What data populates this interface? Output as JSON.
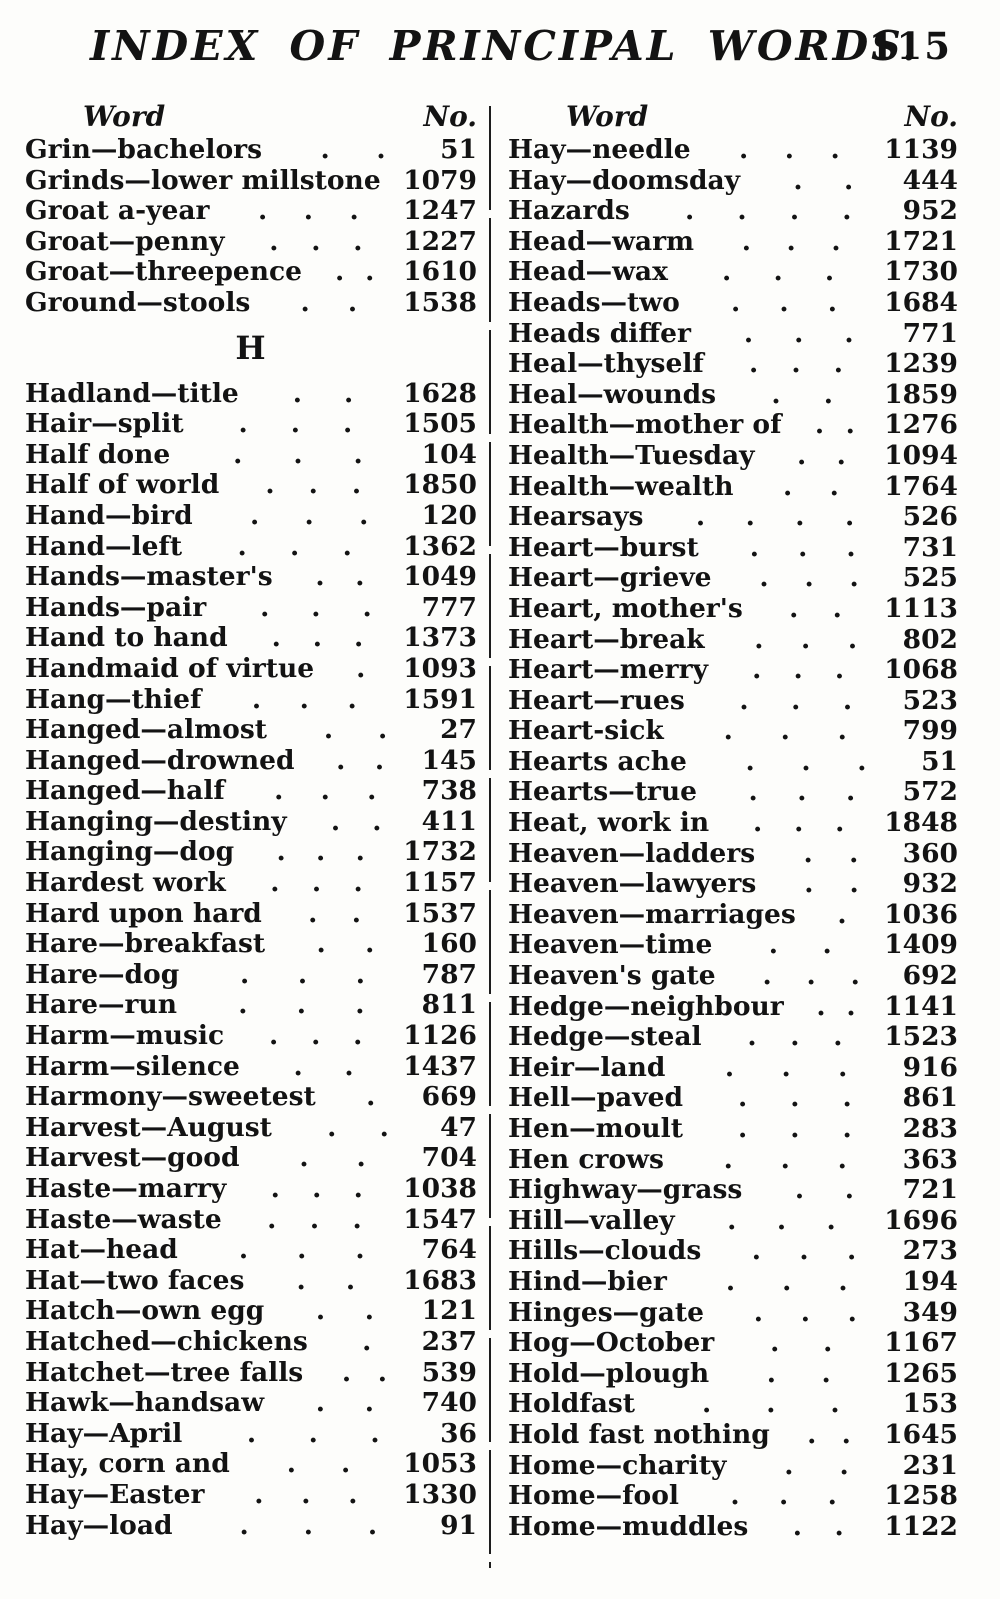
{
  "page": {
    "title": "INDEX OF PRINCIPAL WORDS.",
    "number": "115"
  },
  "table": {
    "word_header": "Word",
    "no_header": "No.",
    "columns": [
      {
        "entries": [
          {
            "word": "Grin—bachelors",
            "no": "51",
            "dots": 2
          },
          {
            "word": "Grinds—lower millstone",
            "no": "1079",
            "dots": 0
          },
          {
            "word": "Groat a-year",
            "no": "1247",
            "dots": 3
          },
          {
            "word": "Groat—penny",
            "no": "1227",
            "dots": 3
          },
          {
            "word": "Groat—threepence",
            "no": "1610",
            "dots": 2
          },
          {
            "word": "Ground—stools",
            "no": "1538",
            "dots": 2
          },
          {
            "heading": "H"
          },
          {
            "word": "Hadland—title",
            "no": "1628",
            "dots": 2
          },
          {
            "word": "Hair—split",
            "no": "1505",
            "dots": 3
          },
          {
            "word": "Half done",
            "no": "104",
            "dots": 3
          },
          {
            "word": "Half of world",
            "no": "1850",
            "dots": 3
          },
          {
            "word": "Hand—bird",
            "no": "120",
            "dots": 3
          },
          {
            "word": "Hand—left",
            "no": "1362",
            "dots": 3
          },
          {
            "word": "Hands—master's",
            "no": "1049",
            "dots": 2
          },
          {
            "word": "Hands—pair",
            "no": "777",
            "dots": 3
          },
          {
            "word": "Hand to hand",
            "no": "1373",
            "dots": 3
          },
          {
            "word": "Handmaid of virtue",
            "no": "1093",
            "dots": 1
          },
          {
            "word": "Hang—thief",
            "no": "1591",
            "dots": 3
          },
          {
            "word": "Hanged—almost",
            "no": "27",
            "dots": 2
          },
          {
            "word": "Hanged—drowned",
            "no": "145",
            "dots": 2
          },
          {
            "word": "Hanged—half",
            "no": "738",
            "dots": 3
          },
          {
            "word": "Hanging—destiny",
            "no": "411",
            "dots": 2
          },
          {
            "word": "Hanging—dog",
            "no": "1732",
            "dots": 3
          },
          {
            "word": "Hardest work",
            "no": "1157",
            "dots": 3
          },
          {
            "word": "Hard upon hard",
            "no": "1537",
            "dots": 2
          },
          {
            "word": "Hare—breakfast",
            "no": "160",
            "dots": 2
          },
          {
            "word": "Hare—dog",
            "no": "787",
            "dots": 3
          },
          {
            "word": "Hare—run",
            "no": "811",
            "dots": 3
          },
          {
            "word": "Harm—music",
            "no": "1126",
            "dots": 3
          },
          {
            "word": "Harm—silence",
            "no": "1437",
            "dots": 2
          },
          {
            "word": "Harmony—sweetest",
            "no": "669",
            "dots": 1
          },
          {
            "word": "Harvest—August",
            "no": "47",
            "dots": 2
          },
          {
            "word": "Harvest—good",
            "no": "704",
            "dots": 2
          },
          {
            "word": "Haste—marry",
            "no": "1038",
            "dots": 3
          },
          {
            "word": "Haste—waste",
            "no": "1547",
            "dots": 3
          },
          {
            "word": "Hat—head",
            "no": "764",
            "dots": 3
          },
          {
            "word": "Hat—two faces",
            "no": "1683",
            "dots": 2
          },
          {
            "word": "Hatch—own egg",
            "no": "121",
            "dots": 2
          },
          {
            "word": "Hatched—chickens",
            "no": "237",
            "dots": 1
          },
          {
            "word": "Hatchet—tree falls",
            "no": "539",
            "dots": 2
          },
          {
            "word": "Hawk—handsaw",
            "no": "740",
            "dots": 2
          },
          {
            "word": "Hay—April",
            "no": "36",
            "dots": 3
          },
          {
            "word": "Hay, corn and",
            "no": "1053",
            "dots": 2
          },
          {
            "word": "Hay—Easter",
            "no": "1330",
            "dots": 3
          },
          {
            "word": "Hay—load",
            "no": "91",
            "dots": 3
          }
        ]
      },
      {
        "entries": [
          {
            "word": "Hay—needle",
            "no": "1139",
            "dots": 3
          },
          {
            "word": "Hay—doomsday",
            "no": "444",
            "dots": 2
          },
          {
            "word": "Hazards",
            "no": "952",
            "dots": 4
          },
          {
            "word": "Head—warm",
            "no": "1721",
            "dots": 3
          },
          {
            "word": "Head—wax",
            "no": "1730",
            "dots": 3
          },
          {
            "word": "Heads—two",
            "no": "1684",
            "dots": 3
          },
          {
            "word": "Heads differ",
            "no": "771",
            "dots": 3
          },
          {
            "word": "Heal—thyself",
            "no": "1239",
            "dots": 3
          },
          {
            "word": "Heal—wounds",
            "no": "1859",
            "dots": 2
          },
          {
            "word": "Health—mother of",
            "no": "1276",
            "dots": 2
          },
          {
            "word": "Health—Tuesday",
            "no": "1094",
            "dots": 2
          },
          {
            "word": "Health—wealth",
            "no": "1764",
            "dots": 2
          },
          {
            "word": "Hearsays",
            "no": "526",
            "dots": 4
          },
          {
            "word": "Heart—burst",
            "no": "731",
            "dots": 3
          },
          {
            "word": "Heart—grieve",
            "no": "525",
            "dots": 3
          },
          {
            "word": "Heart, mother's",
            "no": "1113",
            "dots": 2
          },
          {
            "word": "Heart—break",
            "no": "802",
            "dots": 3
          },
          {
            "word": "Heart—merry",
            "no": "1068",
            "dots": 3
          },
          {
            "word": "Heart—rues",
            "no": "523",
            "dots": 3
          },
          {
            "word": "Heart-sick",
            "no": "799",
            "dots": 3
          },
          {
            "word": "Hearts ache",
            "no": "51",
            "dots": 3
          },
          {
            "word": "Hearts—true",
            "no": "572",
            "dots": 3
          },
          {
            "word": "Heat, work in",
            "no": "1848",
            "dots": 3
          },
          {
            "word": "Heaven—ladders",
            "no": "360",
            "dots": 2
          },
          {
            "word": "Heaven—lawyers",
            "no": "932",
            "dots": 2
          },
          {
            "word": "Heaven—marriages",
            "no": "1036",
            "dots": 1
          },
          {
            "word": "Heaven—time",
            "no": "1409",
            "dots": 2
          },
          {
            "word": "Heaven's gate",
            "no": "692",
            "dots": 3
          },
          {
            "word": "Hedge—neighbour",
            "no": "1141",
            "dots": 2
          },
          {
            "word": "Hedge—steal",
            "no": "1523",
            "dots": 3
          },
          {
            "word": "Heir—land",
            "no": "916",
            "dots": 3
          },
          {
            "word": "Hell—paved",
            "no": "861",
            "dots": 3
          },
          {
            "word": "Hen—moult",
            "no": "283",
            "dots": 3
          },
          {
            "word": "Hen crows",
            "no": "363",
            "dots": 3
          },
          {
            "word": "Highway—grass",
            "no": "721",
            "dots": 2
          },
          {
            "word": "Hill—valley",
            "no": "1696",
            "dots": 3
          },
          {
            "word": "Hills—clouds",
            "no": "273",
            "dots": 3
          },
          {
            "word": "Hind—bier",
            "no": "194",
            "dots": 3
          },
          {
            "word": "Hinges—gate",
            "no": "349",
            "dots": 3
          },
          {
            "word": "Hog—October",
            "no": "1167",
            "dots": 2
          },
          {
            "word": "Hold—plough",
            "no": "1265",
            "dots": 2
          },
          {
            "word": "Holdfast",
            "no": "153",
            "dots": 3
          },
          {
            "word": "Hold fast nothing",
            "no": "1645",
            "dots": 2
          },
          {
            "word": "Home—charity",
            "no": "231",
            "dots": 2
          },
          {
            "word": "Home—fool",
            "no": "1258",
            "dots": 3
          },
          {
            "word": "Home—muddles",
            "no": "1122",
            "dots": 2
          }
        ]
      }
    ]
  }
}
